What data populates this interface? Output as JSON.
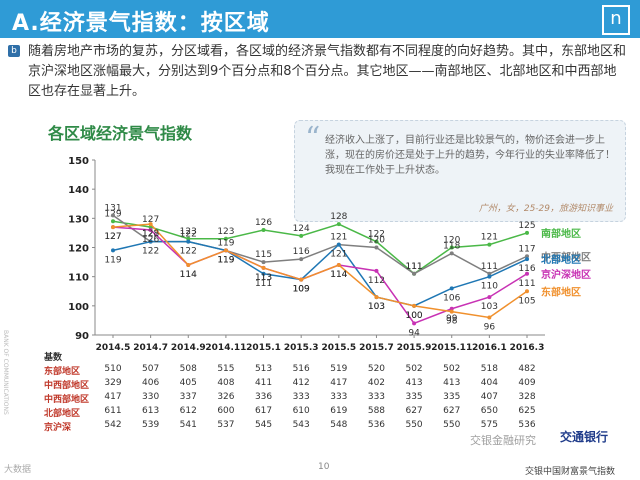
{
  "header": {
    "title": "A.经济景气指数：按区域",
    "logo_letter": "n"
  },
  "intro": {
    "bullet": "b",
    "text": "随着房地产市场的复苏，分区域看，各区域的经济景气指数都有不同程度的向好趋势。其中，东部地区和京沪深地区涨幅最大，分别达到9个百分点和8个百分点。其它地区——南部地区、北部地区和中西部地区也存在显著上升。"
  },
  "quote": {
    "mark": "“",
    "text": "经济收入上涨了，目前行业还是比较景气的，物价还会进一步上涨，现在的房价还是处于上升的趋势，今年行业的失业率降低了！我现在工作处于上升状态。",
    "source": "广州，女，25-29，旅游知识事业"
  },
  "colors": {
    "header_bg": "#2f9bd6",
    "south": "#4ab847",
    "central_west": "#7f7f7f",
    "north": "#1f77b4",
    "jhs": "#c832b4",
    "east": "#f0902d"
  },
  "chart_data": {
    "type": "line",
    "title": "各区域经济景气指数",
    "xlabel": "",
    "ylabel": "",
    "ylim": [
      90,
      150
    ],
    "yticks": [
      90,
      100,
      110,
      120,
      130,
      140,
      150
    ],
    "categories": [
      "2014.5",
      "2014.7",
      "2014.9",
      "2014.11",
      "2015.1",
      "2015.3",
      "2015.5",
      "2015.7",
      "2015.9",
      "2015.11",
      "2016.1",
      "2016.3"
    ],
    "series": [
      {
        "name": "南部地区",
        "key": "south",
        "values": [
          129,
          127,
          123,
          123,
          126,
          124,
          128,
          122,
          111,
          120,
          121,
          125
        ]
      },
      {
        "name": "中西部地区",
        "key": "central_west",
        "values": [
          131,
          122,
          122,
          119,
          115,
          116,
          121,
          120,
          111,
          118,
          111,
          117
        ]
      },
      {
        "name": "北部地区",
        "key": "north",
        "values": [
          119,
          122,
          122,
          119,
          111,
          109,
          121,
          103,
          100,
          106,
          110,
          116
        ]
      },
      {
        "name": "京沪深地区",
        "key": "jhs",
        "values": [
          127,
          126,
          114,
          119,
          113,
          109,
          114,
          112,
          94,
          99,
          103,
          111
        ]
      },
      {
        "name": "东部地区",
        "key": "east",
        "values": [
          127,
          128,
          114,
          119,
          113,
          109,
          114,
          103,
          100,
          98,
          96,
          105
        ]
      }
    ],
    "table": {
      "header": "基数",
      "rows": [
        {
          "label": "东部地区",
          "values": [
            "510",
            "507",
            "508",
            "515",
            "513",
            "516",
            "519",
            "520",
            "502",
            "502",
            "518",
            "482"
          ]
        },
        {
          "label": "中西部地区",
          "values": [
            "329",
            "406",
            "405",
            "408",
            "411",
            "412",
            "417",
            "402",
            "413",
            "413",
            "404",
            "409"
          ]
        },
        {
          "label": "中西部地区",
          "values": [
            "417",
            "330",
            "337",
            "326",
            "336",
            "333",
            "333",
            "333",
            "335",
            "335",
            "407",
            "328"
          ]
        },
        {
          "label": "北部地区",
          "values": [
            "611",
            "613",
            "612",
            "600",
            "617",
            "610",
            "619",
            "588",
            "627",
            "627",
            "650",
            "625"
          ]
        },
        {
          "label": "京沪深",
          "values": [
            "542",
            "539",
            "541",
            "537",
            "545",
            "543",
            "548",
            "536",
            "550",
            "550",
            "575",
            "536"
          ]
        }
      ]
    }
  },
  "footer": {
    "page_number": "10",
    "left_text": "大数据",
    "bank_name": "交通银行",
    "bank_sub": "BANK OF COMMUNICATIONS",
    "bank_footer": "交银中国财富景气指数",
    "watermark": "交银金融研究"
  }
}
